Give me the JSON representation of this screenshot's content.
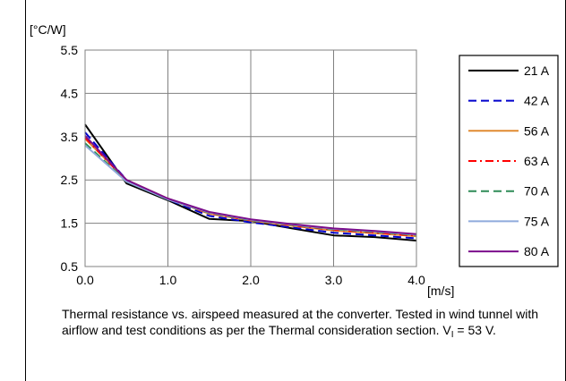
{
  "header": "",
  "chart_data": {
    "type": "line",
    "ylabel": "[°C/W]",
    "xlabel": "[m/s]",
    "xlim": [
      0.0,
      4.0
    ],
    "ylim": [
      0.5,
      5.5
    ],
    "x_ticks": [
      "0.0",
      "1.0",
      "2.0",
      "3.0",
      "4.0"
    ],
    "y_ticks": [
      "0.5",
      "1.5",
      "2.5",
      "3.5",
      "4.5",
      "5.5"
    ],
    "grid": true,
    "legend_position": "right",
    "series": [
      {
        "name": "21 A",
        "color": "#000000",
        "dash": "solid",
        "x": [
          0,
          0.5,
          1.0,
          1.5,
          2.0,
          2.5,
          3.0,
          3.5,
          4.0
        ],
        "y": [
          3.78,
          2.42,
          2.03,
          1.6,
          1.55,
          1.38,
          1.22,
          1.18,
          1.1
        ]
      },
      {
        "name": "42 A",
        "color": "#0000CC",
        "dash": "dash",
        "x": [
          0,
          0.5,
          1.0,
          1.5,
          2.0,
          2.5,
          3.0,
          3.5,
          4.0
        ],
        "y": [
          3.6,
          2.5,
          2.05,
          1.67,
          1.52,
          1.4,
          1.28,
          1.22,
          1.15
        ]
      },
      {
        "name": "56 A",
        "color": "#E08A30",
        "dash": "solid",
        "x": [
          0,
          0.5,
          1.0,
          1.5,
          2.0,
          2.5,
          3.0,
          3.5,
          4.0
        ],
        "y": [
          3.45,
          2.5,
          2.07,
          1.72,
          1.56,
          1.44,
          1.33,
          1.27,
          1.2
        ]
      },
      {
        "name": "63 A",
        "color": "#FF0000",
        "dash": "dashdot",
        "x": [
          0,
          0.5,
          1.0,
          1.5,
          2.0,
          2.5,
          3.0,
          3.5,
          4.0
        ],
        "y": [
          3.48,
          2.48,
          2.06,
          1.73,
          1.57,
          1.45,
          1.35,
          1.28,
          1.21
        ]
      },
      {
        "name": "70 A",
        "color": "#2E8B57",
        "dash": "dash",
        "x": [
          0,
          0.5,
          1.0,
          1.5,
          2.0,
          2.5,
          3.0,
          3.5,
          4.0
        ],
        "y": [
          3.35,
          2.47,
          2.05,
          1.74,
          1.57,
          1.46,
          1.36,
          1.3,
          1.23
        ]
      },
      {
        "name": "75 A",
        "color": "#8FAADC",
        "dash": "solid",
        "x": [
          0,
          0.5,
          1.0,
          1.5,
          2.0,
          2.5,
          3.0,
          3.5,
          4.0
        ],
        "y": [
          3.3,
          2.46,
          2.05,
          1.75,
          1.58,
          1.47,
          1.37,
          1.31,
          1.24
        ]
      },
      {
        "name": "80 A",
        "color": "#7B0E8C",
        "dash": "solid",
        "x": [
          0,
          0.5,
          1.0,
          1.5,
          2.0,
          2.5,
          3.0,
          3.5,
          4.0
        ],
        "y": [
          3.52,
          2.5,
          2.07,
          1.76,
          1.59,
          1.48,
          1.38,
          1.32,
          1.25
        ]
      }
    ]
  },
  "caption": {
    "text": "Thermal resistance vs. airspeed measured at the converter. Tested in wind tunnel with airflow and test conditions as per the Thermal consideration section. V",
    "subscript": "I",
    "suffix": " = 53 V."
  }
}
